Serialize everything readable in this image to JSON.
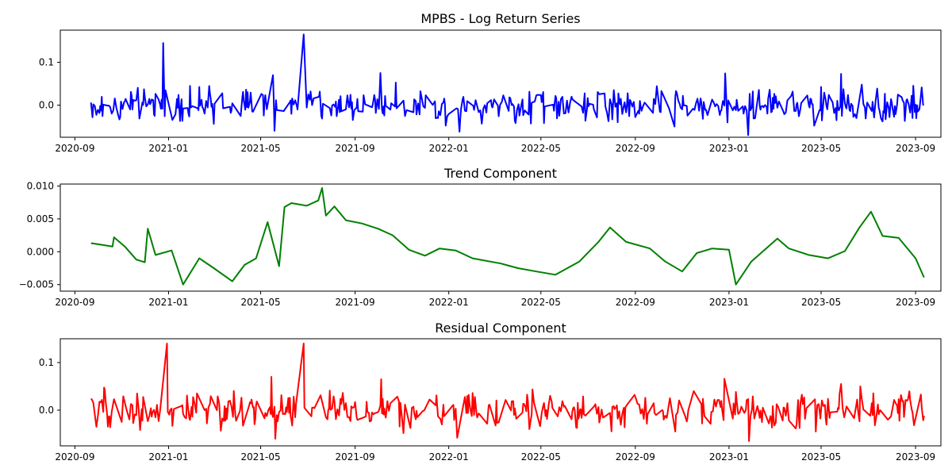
{
  "chart_data": [
    {
      "type": "line",
      "title": "MPBS - Log Return Series",
      "color": "#0000ff",
      "xlim": [
        "2020-08-13",
        "2023-10-04"
      ],
      "ylim": [
        -0.075,
        0.175
      ],
      "yticks": [
        0.0,
        0.1
      ],
      "ytick_labels": [
        "0.0",
        "0.1"
      ],
      "xticks": [
        "2020-09-01",
        "2021-01-01",
        "2021-05-01",
        "2021-09-01",
        "2022-01-01",
        "2022-05-01",
        "2022-09-01",
        "2023-01-01",
        "2023-05-01",
        "2023-09-01"
      ],
      "xtick_labels": [
        "2020-09",
        "2021-01",
        "2021-05",
        "2021-09",
        "2022-01",
        "2022-05",
        "2022-09",
        "2023-01",
        "2023-05",
        "2023-09"
      ],
      "series": [
        {
          "x_start": "2020-09-22",
          "x_end": "2023-09-12",
          "anchors": [
            [
              "2020-12-26",
              0.145
            ],
            [
              "2021-06-25",
              0.165
            ],
            [
              "2021-05-15",
              0.07
            ],
            [
              "2021-05-20",
              -0.06
            ],
            [
              "2021-10-05",
              0.075
            ],
            [
              "2022-01-15",
              -0.062
            ],
            [
              "2022-12-28",
              0.074
            ],
            [
              "2023-01-27",
              -0.07
            ],
            [
              "2023-04-25",
              -0.048
            ],
            [
              "2023-05-27",
              0.073
            ],
            [
              "2022-10-22",
              -0.05
            ],
            [
              "2022-05-05",
              -0.042
            ],
            [
              "2022-03-30",
              -0.042
            ],
            [
              "2023-06-22",
              0.048
            ]
          ],
          "amplitude": 0.018
        }
      ]
    },
    {
      "type": "line",
      "title": "Trend Component",
      "color": "#008000",
      "xlim": [
        "2020-08-13",
        "2023-10-04"
      ],
      "ylim": [
        -0.006,
        0.0103
      ],
      "yticks": [
        -0.005,
        0.0,
        0.005,
        0.01
      ],
      "ytick_labels": [
        "−0.005",
        "0.000",
        "0.005",
        "0.010"
      ],
      "xticks": [
        "2020-09-01",
        "2021-01-01",
        "2021-05-01",
        "2021-09-01",
        "2022-01-01",
        "2022-05-01",
        "2022-09-01",
        "2023-01-01",
        "2023-05-01",
        "2023-09-01"
      ],
      "xtick_labels": [
        "2020-09",
        "2021-01",
        "2021-05",
        "2021-09",
        "2022-01",
        "2022-05",
        "2022-09",
        "2023-01",
        "2023-05",
        "2023-09"
      ],
      "series": [
        {
          "x": [
            "2020-09-22",
            "2020-10-20",
            "2020-10-22",
            "2020-11-05",
            "2020-11-20",
            "2020-12-01",
            "2020-12-05",
            "2020-12-15",
            "2021-01-05",
            "2021-01-20",
            "2021-02-10",
            "2021-03-01",
            "2021-03-25",
            "2021-04-10",
            "2021-04-25",
            "2021-05-10",
            "2021-05-25",
            "2021-06-01",
            "2021-06-10",
            "2021-06-30",
            "2021-07-15",
            "2021-07-20",
            "2021-07-25",
            "2021-08-05",
            "2021-08-20",
            "2021-09-10",
            "2021-10-01",
            "2021-10-20",
            "2021-11-10",
            "2021-12-01",
            "2021-12-20",
            "2022-01-10",
            "2022-02-01",
            "2022-03-10",
            "2022-04-01",
            "2022-04-25",
            "2022-05-20",
            "2022-06-20",
            "2022-07-15",
            "2022-07-30",
            "2022-08-20",
            "2022-09-20",
            "2022-10-10",
            "2022-11-01",
            "2022-11-20",
            "2022-12-10",
            "2023-01-01",
            "2023-01-10",
            "2023-01-30",
            "2023-03-05",
            "2023-03-20",
            "2023-04-15",
            "2023-05-10",
            "2023-06-01",
            "2023-06-20",
            "2023-07-05",
            "2023-07-20",
            "2023-08-10",
            "2023-09-01",
            "2023-09-12"
          ],
          "y": [
            0.0013,
            0.0008,
            0.0022,
            0.0008,
            -0.0012,
            -0.0016,
            0.0035,
            -0.0005,
            0.0002,
            -0.005,
            -0.001,
            -0.0025,
            -0.0045,
            -0.002,
            -0.001,
            0.0045,
            -0.0022,
            0.0068,
            0.0074,
            0.007,
            0.0078,
            0.0097,
            0.0055,
            0.0069,
            0.0048,
            0.0043,
            0.0035,
            0.0025,
            0.0003,
            -0.0006,
            0.0005,
            0.0002,
            -0.001,
            -0.0018,
            -0.0025,
            -0.003,
            -0.0035,
            -0.0015,
            0.0015,
            0.0037,
            0.0015,
            0.0005,
            -0.0015,
            -0.003,
            -0.0002,
            0.0005,
            0.0003,
            -0.005,
            -0.0015,
            0.002,
            0.0005,
            -0.0005,
            -0.001,
            0.0001,
            0.0037,
            0.0061,
            0.0024,
            0.0021,
            -0.001,
            -0.0039
          ]
        }
      ]
    },
    {
      "type": "line",
      "title": "Residual Component",
      "color": "#ff0000",
      "xlim": [
        "2020-08-13",
        "2023-10-04"
      ],
      "ylim": [
        -0.075,
        0.15
      ],
      "yticks": [
        0.0,
        0.1
      ],
      "ytick_labels": [
        "0.0",
        "0.1"
      ],
      "xticks": [
        "2020-09-01",
        "2021-01-01",
        "2021-05-01",
        "2021-09-01",
        "2022-01-01",
        "2022-05-01",
        "2022-09-01",
        "2023-01-01",
        "2023-05-01",
        "2023-09-01"
      ],
      "xtick_labels": [
        "2020-09",
        "2021-01",
        "2021-05",
        "2021-09",
        "2022-01",
        "2022-05",
        "2022-09",
        "2023-01",
        "2023-05",
        "2023-09"
      ],
      "series": [
        {
          "x_start": "2020-09-22",
          "x_end": "2023-09-12",
          "anchors": [
            [
              "2020-12-26",
              0.14
            ],
            [
              "2021-06-25",
              0.14
            ],
            [
              "2021-05-15",
              0.07
            ],
            [
              "2021-05-20",
              -0.06
            ],
            [
              "2021-10-05",
              0.065
            ],
            [
              "2022-01-15",
              -0.058
            ],
            [
              "2022-12-28",
              0.066
            ],
            [
              "2023-01-27",
              -0.065
            ],
            [
              "2023-04-25",
              -0.045
            ],
            [
              "2023-05-27",
              0.055
            ],
            [
              "2022-10-22",
              -0.045
            ],
            [
              "2022-11-20",
              0.04
            ],
            [
              "2023-06-22",
              0.05
            ]
          ],
          "amplitude": 0.018
        }
      ]
    }
  ]
}
